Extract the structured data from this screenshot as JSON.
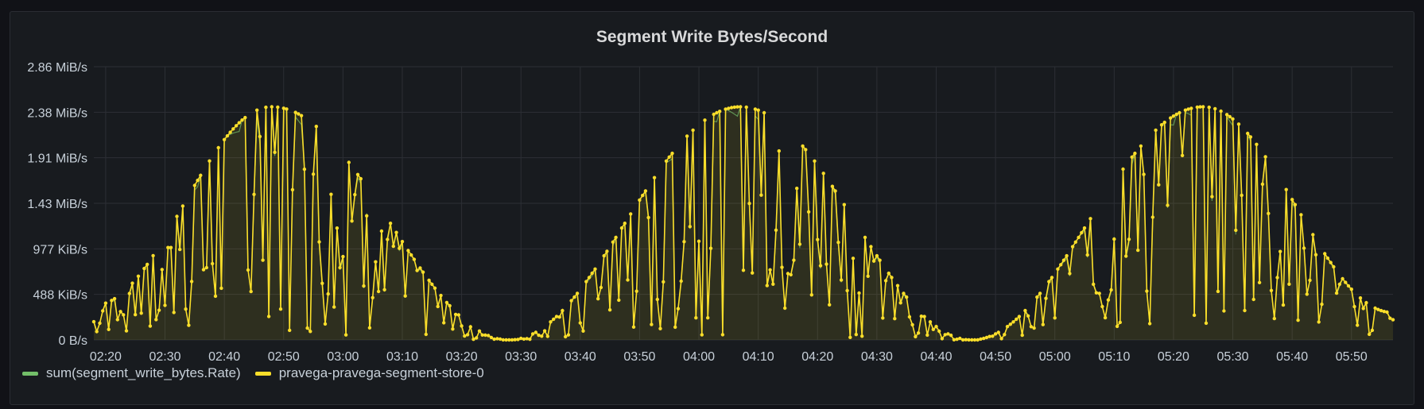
{
  "panel": {
    "title": "Segment Write Bytes/Second"
  },
  "colors": {
    "background": "#181b1f",
    "grid": "#2c2f35",
    "text": "#c7d0d9",
    "series_green": "#73bf69",
    "series_yellow": "#fade2a"
  },
  "chart_data": {
    "type": "line",
    "title": "Segment Write Bytes/Second",
    "xlabel": "",
    "ylabel": "",
    "x_range": [
      "02:18",
      "05:57"
    ],
    "ylim": [
      0,
      3000000
    ],
    "y_ticks": [
      {
        "value": 0,
        "label": "0 B/s"
      },
      {
        "value": 500000,
        "label": "488 KiB/s"
      },
      {
        "value": 1000000,
        "label": "977 KiB/s"
      },
      {
        "value": 1500000,
        "label": "1.43 MiB/s"
      },
      {
        "value": 2000000,
        "label": "1.91 MiB/s"
      },
      {
        "value": 2500000,
        "label": "2.38 MiB/s"
      },
      {
        "value": 3000000,
        "label": "2.86 MiB/s"
      }
    ],
    "x_ticks": [
      "02:20",
      "02:30",
      "02:40",
      "02:50",
      "03:00",
      "03:10",
      "03:20",
      "03:30",
      "03:40",
      "03:50",
      "04:00",
      "04:10",
      "04:20",
      "04:30",
      "04:40",
      "04:50",
      "05:00",
      "05:10",
      "05:20",
      "05:30",
      "05:40",
      "05:50"
    ],
    "grid": true,
    "legend_position": "bottom-left",
    "series": [
      {
        "name": "sum(segment_write_bytes.Rate)",
        "color": "#73bf69",
        "envelope": [
          [
            "02:18",
            380000
          ],
          [
            "02:48",
            2560000
          ],
          [
            "03:28",
            0
          ],
          [
            "04:07",
            2560000
          ],
          [
            "04:46",
            0
          ],
          [
            "05:25",
            2560000
          ],
          [
            "05:57",
            300000
          ]
        ]
      },
      {
        "name": "pravega-pravega-segment-store-0",
        "color": "#fade2a",
        "envelope": [
          [
            "02:18",
            380000
          ],
          [
            "02:48",
            2560000
          ],
          [
            "03:28",
            0
          ],
          [
            "04:07",
            2560000
          ],
          [
            "04:46",
            0
          ],
          [
            "05:25",
            2560000
          ],
          [
            "05:57",
            300000
          ]
        ]
      }
    ]
  }
}
